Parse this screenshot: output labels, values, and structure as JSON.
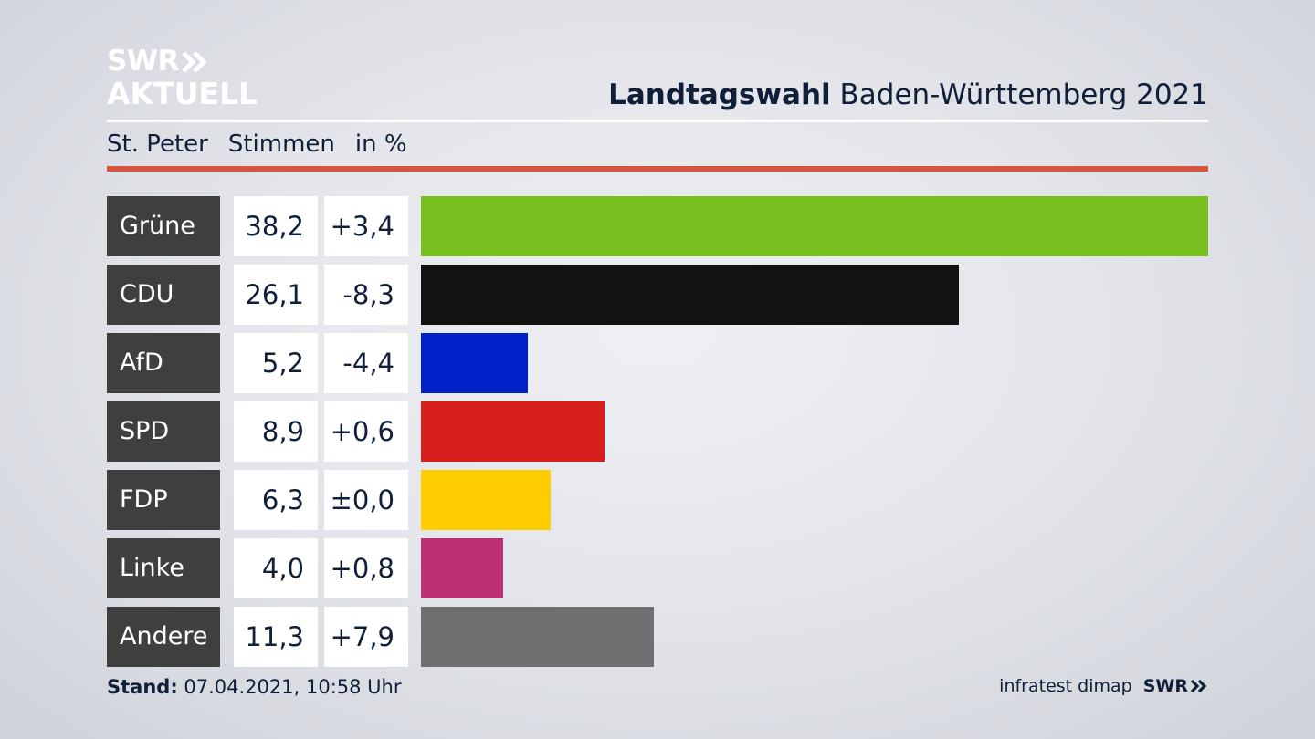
{
  "logo": {
    "line1": "SWR",
    "line2": "AKTUELL"
  },
  "title": {
    "bold": "Landtagswahl",
    "rest": " Baden-Württemberg 2021"
  },
  "subhead": {
    "place": "St. Peter",
    "metric": "Stimmen",
    "unit": "in %"
  },
  "chart_data": {
    "type": "bar",
    "orientation": "horizontal",
    "categories": [
      "Grüne",
      "CDU",
      "AfD",
      "SPD",
      "FDP",
      "Linke",
      "Andere"
    ],
    "values": [
      38.2,
      26.1,
      5.2,
      8.9,
      6.3,
      4.0,
      11.3
    ],
    "value_labels": [
      "38,2",
      "26,1",
      "5,2",
      "8,9",
      "6,3",
      "4,0",
      "11,3"
    ],
    "changes": [
      "+3,4",
      "-8,3",
      "-4,4",
      "+0,6",
      "±0,0",
      "+0,8",
      "+7,9"
    ],
    "colors": [
      "#78be1e",
      "#121212",
      "#0021c8",
      "#d71f1d",
      "#ffcc00",
      "#be3075",
      "#6f7072"
    ],
    "xlim": [
      0,
      38.2
    ]
  },
  "footer": {
    "stand_label": "Stand:",
    "stand_value": " 07.04.2021, 10:58 Uhr",
    "source": "infratest dimap",
    "brand": "SWR"
  }
}
